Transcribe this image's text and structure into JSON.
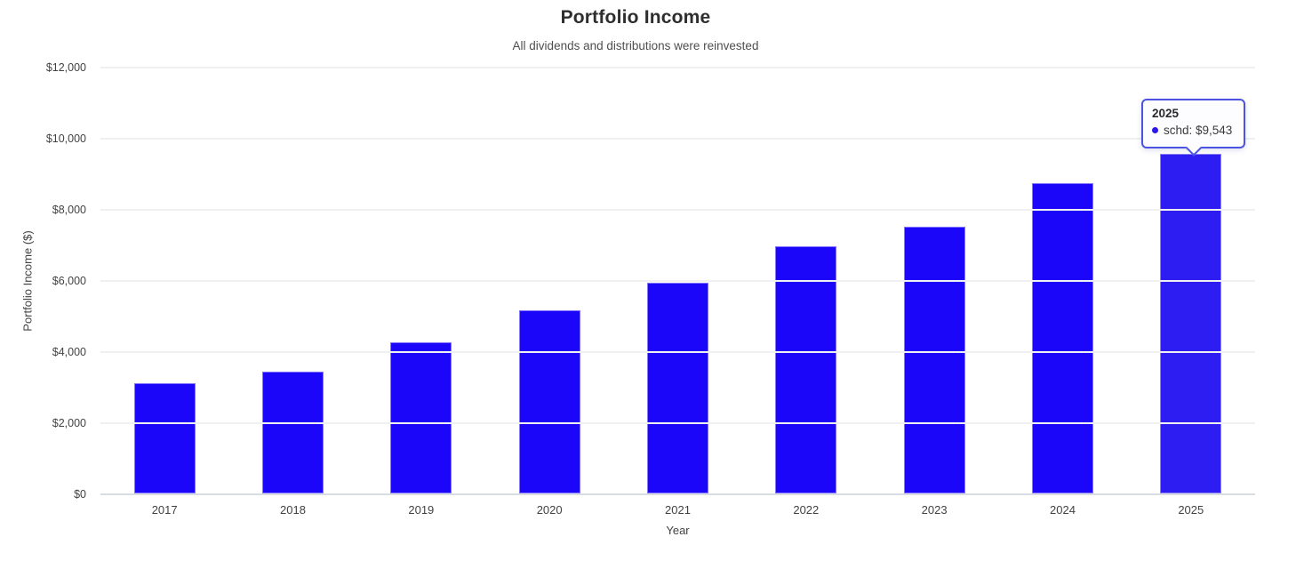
{
  "chart": {
    "title": "Portfolio Income",
    "subtitle": "All dividends and distributions were reinvested",
    "x_axis_title": "Year",
    "y_axis_title": "Portfolio Income ($)"
  },
  "chart_data": {
    "type": "bar",
    "title": "Portfolio Income",
    "subtitle": "All dividends and distributions were reinvested",
    "xlabel": "Year",
    "ylabel": "Portfolio Income ($)",
    "categories": [
      "2017",
      "2018",
      "2019",
      "2020",
      "2021",
      "2022",
      "2023",
      "2024",
      "2025"
    ],
    "series": [
      {
        "name": "schd",
        "values": [
          3100,
          3425,
          4250,
          5150,
          5925,
          6950,
          7500,
          8725,
          9543
        ]
      }
    ],
    "ylim": [
      0,
      12000
    ],
    "y_ticks": [
      {
        "value": 12000,
        "label": "$12,000"
      },
      {
        "value": 10000,
        "label": "$10,000"
      },
      {
        "value": 8000,
        "label": "$8,000"
      },
      {
        "value": 6000,
        "label": "$6,000"
      },
      {
        "value": 4000,
        "label": "$4,000"
      },
      {
        "value": 2000,
        "label": "$2,000"
      },
      {
        "value": 0,
        "label": "$0"
      }
    ],
    "grid": "horizontal",
    "legend": "none",
    "bar_color": "#1b06fa",
    "highlighted_bar_color": "#2e1df3",
    "highlighted_index": 8
  },
  "tooltip": {
    "title": "2025",
    "series_name": "schd",
    "value": "$9,543",
    "label": "schd: $9,543",
    "dot_color": "#2a18ea",
    "border_color": "#4b54e1"
  }
}
